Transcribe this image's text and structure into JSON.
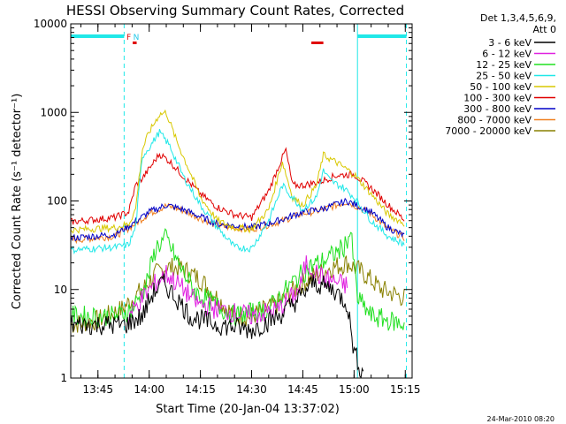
{
  "chart_data": {
    "type": "line",
    "title": "HESSI Observing Summary Count Rates, Corrected",
    "xlabel": "Start Time (20-Jan-04 13:37:02)",
    "ylabel": "Corrected Count Rate (s⁻¹ detector⁻¹)",
    "timestamp": "24-Mar-2010 08:20",
    "x_range": [
      "13:37:02",
      "15:17:00"
    ],
    "x_ticks": [
      "13:45",
      "14:00",
      "14:15",
      "14:30",
      "14:45",
      "15:00",
      "15:15"
    ],
    "y_scale": "log",
    "ylim": [
      1,
      10000
    ],
    "y_ticks": [
      "1",
      "10",
      "100",
      "1000",
      "10000"
    ],
    "legend": {
      "placement": "right",
      "header": [
        "Det 1,3,4,5,6,9,",
        "Att 0"
      ],
      "entries": [
        {
          "label": "3 - 6 keV",
          "color": "#000000"
        },
        {
          "label": "6 - 12 keV",
          "color": "#e020e0"
        },
        {
          "label": "12 - 25 keV",
          "color": "#20e020"
        },
        {
          "label": "25 - 50 keV",
          "color": "#20e8e8"
        },
        {
          "label": "50 - 100 keV",
          "color": "#d8c800"
        },
        {
          "label": "100 - 300 keV",
          "color": "#e00000"
        },
        {
          "label": "300 - 800 keV",
          "color": "#0000c8"
        },
        {
          "label": "800 - 7000 keV",
          "color": "#f08020"
        },
        {
          "label": "7000 - 20000 keV",
          "color": "#888000"
        }
      ]
    },
    "annotations": [
      {
        "text": "N",
        "time": "13:55:20",
        "color": "#20c8e8"
      },
      {
        "text": "F",
        "time": "13:53:20",
        "color": "#e00000"
      }
    ],
    "night_intervals": [
      [
        "13:37:02",
        "13:52:40"
      ],
      [
        "15:01:00",
        "15:15:20"
      ]
    ],
    "flare_flags": [
      [
        "13:55:10",
        "13:56:20"
      ],
      [
        "14:47:30",
        "14:51:00"
      ]
    ],
    "saa_boundaries": [
      "13:52:40",
      "15:01:00",
      "15:15:20"
    ],
    "series": [
      {
        "name": "3 - 6 keV",
        "color": "#000000",
        "x": [
          "13:37:02",
          "13:50:00",
          "13:53:00",
          "13:58:00",
          "14:01:00",
          "14:04:00",
          "14:08:00",
          "14:12:00",
          "14:20:00",
          "14:30:00",
          "14:38:00",
          "14:44:00",
          "14:48:00",
          "14:54:00",
          "14:58:00",
          "15:00:00",
          "15:03:00"
        ],
        "y": [
          4,
          4,
          4,
          5,
          9,
          12,
          8,
          5,
          4,
          3.5,
          5,
          8,
          12,
          10,
          7,
          2,
          1
        ]
      },
      {
        "name": "6 - 12 keV",
        "color": "#e020e0",
        "x": [
          "13:54:00",
          "13:58:00",
          "14:02:00",
          "14:05:00",
          "14:09:00",
          "14:14:00",
          "14:20:00",
          "14:30:00",
          "14:38:00",
          "14:44:00",
          "14:46:00",
          "14:50:00",
          "14:55:00",
          "14:58:00"
        ],
        "y": [
          5,
          8,
          12,
          15,
          11,
          7,
          6,
          5,
          6,
          10,
          20,
          14,
          12,
          11
        ]
      },
      {
        "name": "12 - 25 keV",
        "color": "#20e020",
        "x": [
          "13:37:02",
          "13:50:00",
          "13:55:00",
          "13:59:00",
          "14:02:00",
          "14:05:00",
          "14:09:00",
          "14:14:00",
          "14:25:00",
          "14:35:00",
          "14:42:00",
          "14:47:00",
          "14:52:00",
          "14:57:00",
          "14:59:00",
          "15:01:00",
          "15:05:00",
          "15:15:00"
        ],
        "y": [
          5,
          5,
          6,
          11,
          30,
          38,
          18,
          9,
          5,
          6,
          12,
          18,
          22,
          30,
          45,
          8,
          5,
          4
        ]
      },
      {
        "name": "25 - 50 keV",
        "color": "#20e8e8",
        "x": [
          "13:37:02",
          "13:50:00",
          "13:54:00",
          "13:56:00",
          "13:58:00",
          "14:00:00",
          "14:03:00",
          "14:06:00",
          "14:10:00",
          "14:15:00",
          "14:20:00",
          "14:25:00",
          "14:30:00",
          "14:35:00",
          "14:39:00",
          "14:42:00",
          "14:45:00",
          "14:49:00",
          "14:51:00",
          "14:53:00",
          "14:57:00",
          "15:00:00",
          "15:05:00",
          "15:10:00",
          "15:15:00"
        ],
        "y": [
          28,
          30,
          32,
          50,
          320,
          400,
          600,
          420,
          190,
          90,
          50,
          30,
          29,
          60,
          150,
          110,
          80,
          110,
          220,
          170,
          140,
          110,
          60,
          40,
          32
        ]
      },
      {
        "name": "50 - 100 keV",
        "color": "#d8c800",
        "x": [
          "13:37:02",
          "13:50:00",
          "13:54:00",
          "13:56:00",
          "13:58:00",
          "14:00:00",
          "14:03:00",
          "14:05:00",
          "14:08:00",
          "14:12:00",
          "14:15:00",
          "14:20:00",
          "14:25:00",
          "14:30:00",
          "14:35:00",
          "14:39:00",
          "14:42:00",
          "14:45:00",
          "14:49:00",
          "14:51:00",
          "14:55:00",
          "15:00:00",
          "15:05:00",
          "15:10:00",
          "15:15:00"
        ],
        "y": [
          47,
          50,
          55,
          80,
          380,
          600,
          950,
          1000,
          480,
          210,
          110,
          60,
          50,
          48,
          80,
          280,
          110,
          90,
          150,
          330,
          270,
          200,
          120,
          70,
          55
        ]
      },
      {
        "name": "100 - 300 keV",
        "color": "#e00000",
        "x": [
          "13:37:02",
          "13:50:00",
          "13:54:00",
          "13:56:00",
          "13:58:00",
          "14:00:00",
          "14:03:00",
          "14:06:00",
          "14:10:00",
          "14:15:00",
          "14:20:00",
          "14:25:00",
          "14:30:00",
          "14:35:00",
          "14:38:00",
          "14:40:00",
          "14:42:00",
          "14:45:00",
          "14:50:00",
          "14:55:00",
          "15:00:00",
          "15:05:00",
          "15:10:00",
          "15:15:00"
        ],
        "y": [
          58,
          65,
          75,
          150,
          180,
          230,
          340,
          280,
          190,
          120,
          85,
          70,
          65,
          130,
          250,
          380,
          150,
          150,
          165,
          195,
          200,
          140,
          90,
          60
        ]
      },
      {
        "name": "300 - 800 keV",
        "color": "#0000c8",
        "x": [
          "13:37:02",
          "13:50:00",
          "13:55:00",
          "14:00:00",
          "14:05:00",
          "14:10:00",
          "14:20:00",
          "14:30:00",
          "14:38:00",
          "14:45:00",
          "14:50:00",
          "14:58:00",
          "15:05:00",
          "15:10:00",
          "15:15:00"
        ],
        "y": [
          38,
          42,
          55,
          75,
          90,
          80,
          55,
          50,
          60,
          75,
          80,
          100,
          75,
          50,
          40
        ]
      },
      {
        "name": "800 - 7000 keV",
        "color": "#f08020",
        "x": [
          "13:37:02",
          "13:50:00",
          "13:55:00",
          "14:00:00",
          "14:05:00",
          "14:10:00",
          "14:20:00",
          "14:30:00",
          "14:38:00",
          "14:45:00",
          "14:50:00",
          "14:58:00",
          "15:05:00",
          "15:10:00",
          "15:15:00"
        ],
        "y": [
          36,
          40,
          52,
          72,
          88,
          78,
          52,
          48,
          58,
          72,
          78,
          98,
          72,
          48,
          38
        ]
      },
      {
        "name": "7000 - 20000 keV",
        "color": "#888000",
        "x": [
          "13:37:02",
          "13:45:00",
          "13:52:00",
          "13:58:00",
          "14:02:00",
          "14:05:00",
          "14:10:00",
          "14:15:00",
          "14:20:00",
          "14:25:00",
          "14:30:00",
          "14:38:00",
          "14:45:00",
          "14:52:00",
          "14:58:00",
          "15:03:00",
          "15:08:00",
          "15:15:00"
        ],
        "y": [
          4,
          4.5,
          6,
          10,
          15,
          18,
          17,
          13,
          8,
          5,
          5,
          7,
          12,
          17,
          20,
          15,
          10,
          8
        ]
      }
    ]
  }
}
